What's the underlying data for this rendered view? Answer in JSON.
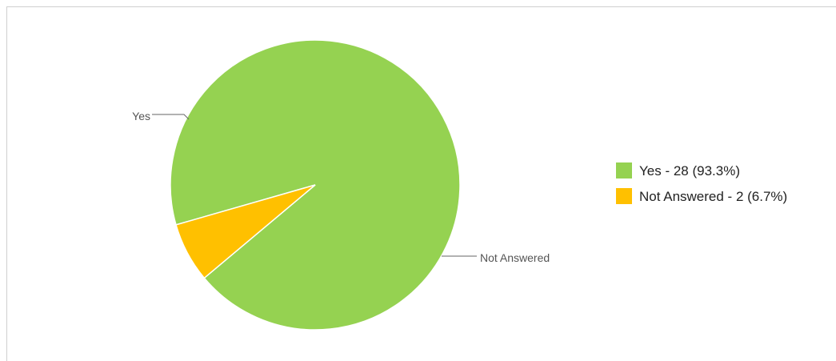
{
  "chart_data": {
    "type": "pie",
    "categories": [
      "Yes",
      "Not Answered"
    ],
    "values": [
      28,
      2
    ],
    "percentages": [
      "93.3%",
      "6.7%"
    ],
    "colors": [
      "#95d251",
      "#ffc000"
    ],
    "legend_position": "right",
    "legend": [
      "Yes - 28 (93.3%)",
      "Not Answered - 2 (6.7%)"
    ],
    "slice_labels": [
      "Yes",
      "Not Answered"
    ]
  }
}
